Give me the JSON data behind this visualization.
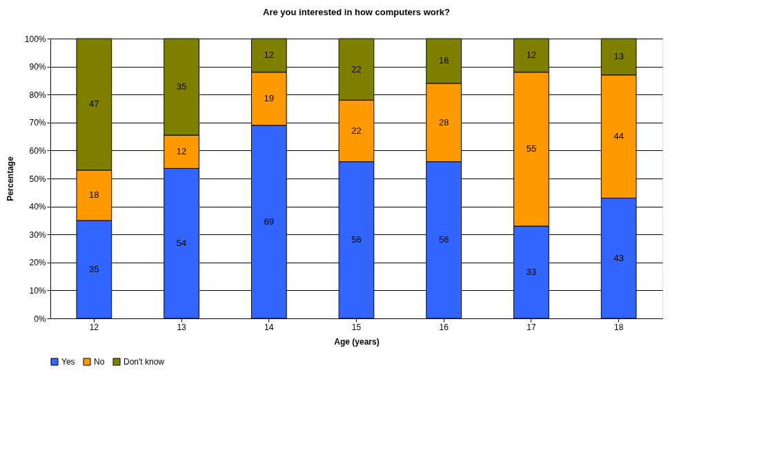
{
  "chart_data": {
    "type": "bar",
    "stacked": true,
    "title": "Are you interested in how computers work?",
    "xlabel": "Age (years)",
    "ylabel": "Percentage",
    "categories": [
      "12",
      "13",
      "14",
      "15",
      "16",
      "17",
      "18"
    ],
    "series": [
      {
        "name": "Yes",
        "color": "#3366ff",
        "values": [
          35,
          53.6,
          69,
          56,
          56,
          33,
          43
        ],
        "value_labels": [
          "35",
          "54",
          "69",
          "56",
          "56",
          "33",
          "43"
        ]
      },
      {
        "name": "No",
        "color": "#ff9900",
        "values": [
          18,
          11.9,
          19,
          22,
          28,
          55,
          44
        ],
        "value_labels": [
          "18",
          "12",
          "19",
          "22",
          "28",
          "55",
          "44"
        ]
      },
      {
        "name": "Don't know",
        "color": "#808000",
        "values": [
          47,
          34.5,
          12,
          22,
          16,
          12,
          13
        ],
        "value_labels": [
          "47",
          "35",
          "12",
          "22",
          "16",
          "12",
          "13"
        ]
      }
    ],
    "ylim": [
      0,
      100
    ],
    "yticks": [
      {
        "value": 0,
        "label": "0%"
      },
      {
        "value": 10,
        "label": "10%"
      },
      {
        "value": 20,
        "label": "20%"
      },
      {
        "value": 30,
        "label": "30%"
      },
      {
        "value": 40,
        "label": "40%"
      },
      {
        "value": 50,
        "label": "50%"
      },
      {
        "value": 60,
        "label": "60%"
      },
      {
        "value": 70,
        "label": "70%"
      },
      {
        "value": 80,
        "label": "80%"
      },
      {
        "value": 90,
        "label": "90%"
      },
      {
        "value": 100,
        "label": "100%"
      }
    ],
    "grid": "y",
    "legend": "bottom"
  }
}
